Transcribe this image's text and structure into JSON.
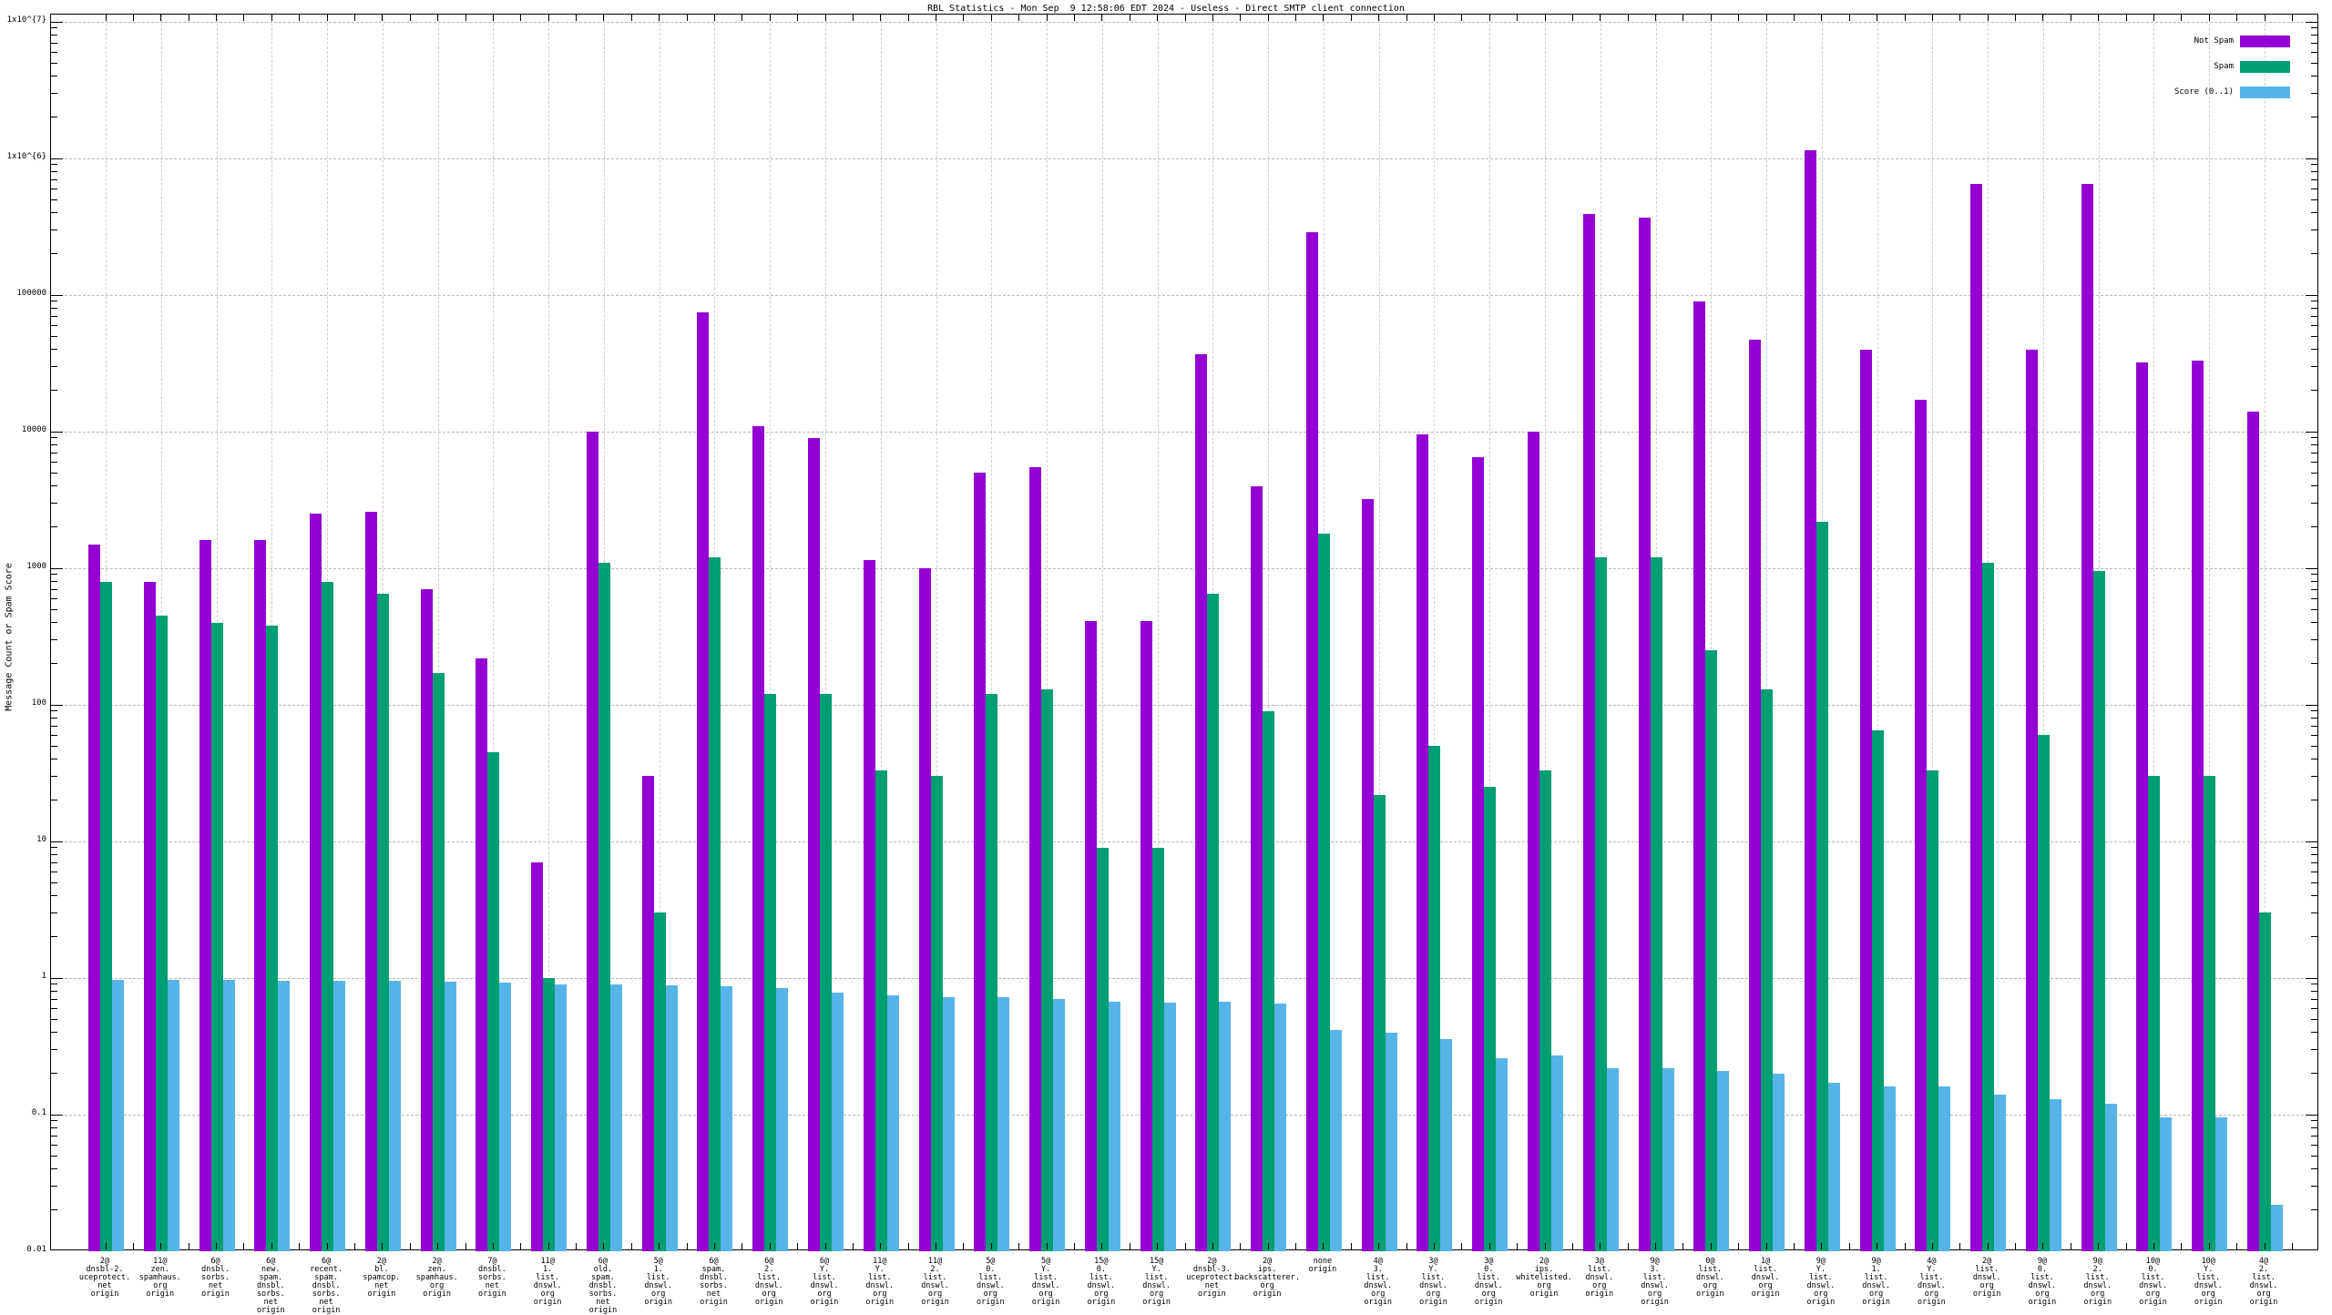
{
  "title": "RBL Statistics - Mon Sep  9 12:58:06 EDT 2024 - Useless - Direct SMTP client connection",
  "y_axis": {
    "label": "Message Count or Spam Score",
    "tick_labels": [
      "1x10^{7}",
      "1x10^{6}",
      "100000",
      "10000",
      "1000",
      "100",
      "10",
      "1",
      "0.1",
      "0.01"
    ]
  },
  "legend": {
    "items": [
      {
        "label": "Not Spam",
        "color": "#9400d3"
      },
      {
        "label": "Spam",
        "color": "#009e73"
      },
      {
        "label": "Score (0..1)",
        "color": "#56b4e9"
      }
    ],
    "position": "top-right"
  },
  "chart_data": {
    "type": "bar",
    "y_scale": "log",
    "ylim": [
      0.01,
      11000000
    ],
    "grid": true,
    "title": "RBL Statistics - Mon Sep  9 12:58:06 EDT 2024 - Useless - Direct SMTP client connection",
    "xlabel": "",
    "ylabel": "Message Count or Spam Score",
    "legend_position": "top-right",
    "categories": [
      "2@\ndnsbl-2.\nuceprotect.\nnet\norigin",
      "11@\nzen.\nspamhaus.\norg\norigin",
      "6@\ndnsbl.\nsorbs.\nnet\norigin",
      "6@\nnew.\nspam.\ndnsbl.\nsorbs.\nnet\norigin",
      "6@\nrecent.\nspam.\ndnsbl.\nsorbs.\nnet\norigin",
      "2@\nbl.\nspamcop.\nnet\norigin",
      "2@\nzen.\nspamhaus.\norg\norigin",
      "7@\ndnsbl.\nsorbs.\nnet\norigin",
      "11@\n1.\nlist.\ndnswl.\norg\norigin",
      "6@\nold.\nspam.\ndnsbl.\nsorbs.\nnet\norigin",
      "5@\n1.\nlist.\ndnswl.\norg\norigin",
      "6@\nspam.\ndnsbl.\nsorbs.\nnet\norigin",
      "6@\n2.\nlist.\ndnswl.\norg\norigin",
      "6@\nY.\nlist.\ndnswl.\norg\norigin",
      "11@\nY.\nlist.\ndnswl.\norg\norigin",
      "11@\n2.\nlist.\ndnswl.\norg\norigin",
      "5@\n0.\nlist.\ndnswl.\norg\norigin",
      "5@\nY.\nlist.\ndnswl.\norg\norigin",
      "15@\n0.\nlist.\ndnswl.\norg\norigin",
      "15@\nY.\nlist.\ndnswl.\norg\norigin",
      "2@\ndnsbl-3.\nuceprotect.\nnet\norigin",
      "2@\nips.\nbackscatterer.\norg\norigin",
      "none\norigin",
      "4@\n3.\nlist.\ndnswl.\norg\norigin",
      "3@\nY.\nlist.\ndnswl.\norg\norigin",
      "3@\n0.\nlist.\ndnswl.\norg\norigin",
      "2@\nips.\nwhitelisted.\norg\norigin",
      "3@\nlist.\ndnswl.\norg\norigin",
      "9@\n3.\nlist.\ndnswl.\norg\norigin",
      "0@\nlist.\ndnswl.\norg\norigin",
      "1@\nlist.\ndnswl.\norg\norigin",
      "9@\nY.\nlist.\ndnswl.\norg\norigin",
      "9@\n1.\nlist.\ndnswl.\norg\norigin",
      "4@\nY.\nlist.\ndnswl.\norg\norigin",
      "2@\nlist.\ndnswl.\norg\norigin",
      "9@\n0.\nlist.\ndnswl.\norg\norigin",
      "9@\n2.\nlist.\ndnswl.\norg\norigin",
      "10@\n0.\nlist.\ndnswl.\norg\norigin",
      "10@\nY.\nlist.\ndnswl.\norg\norigin",
      "4@\n2.\nlist.\ndnswl.\norg\norigin"
    ],
    "series": [
      {
        "name": "Not Spam",
        "color": "#9400d3",
        "values": [
          1500,
          800,
          1600,
          1600,
          2500,
          2600,
          700,
          220,
          7,
          10000,
          30,
          75000,
          11000,
          9000,
          1150,
          1000,
          5000,
          5500,
          410,
          410,
          37000,
          4000,
          290000,
          3200,
          9500,
          6500,
          10000,
          390000,
          370000,
          90000,
          47000,
          1150000,
          40000,
          17000,
          650000,
          40000,
          650000,
          32000,
          33000,
          14000
        ]
      },
      {
        "name": "Spam",
        "color": "#009e73",
        "values": [
          800,
          450,
          400,
          380,
          800,
          650,
          170,
          45,
          1.0,
          1100,
          3,
          1200,
          120,
          120,
          33,
          30,
          120,
          130,
          9,
          9,
          650,
          90,
          1800,
          22,
          50,
          25,
          33,
          1200,
          1200,
          250,
          130,
          2200,
          65,
          33,
          1100,
          60,
          950,
          30,
          30,
          3
        ]
      },
      {
        "name": "Score (0..1)",
        "color": "#56b4e9",
        "values": [
          0.97,
          0.97,
          0.97,
          0.96,
          0.95,
          0.95,
          0.94,
          0.93,
          0.9,
          0.9,
          0.88,
          0.87,
          0.85,
          0.78,
          0.75,
          0.73,
          0.72,
          0.7,
          0.67,
          0.66,
          0.67,
          0.65,
          0.42,
          0.4,
          0.36,
          0.26,
          0.27,
          0.22,
          0.22,
          0.21,
          0.2,
          0.17,
          0.16,
          0.16,
          0.14,
          0.13,
          0.12,
          0.095,
          0.095,
          0.022
        ]
      }
    ]
  }
}
